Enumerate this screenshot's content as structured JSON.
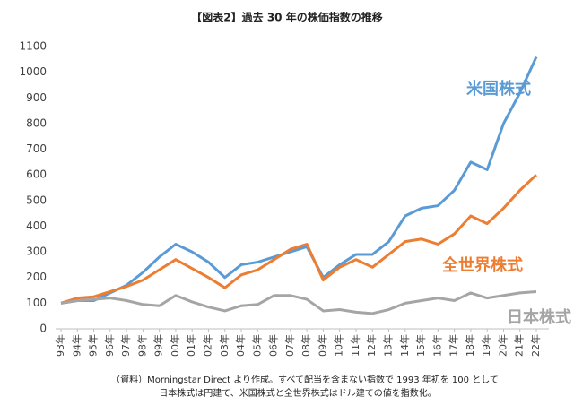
{
  "chart_data": {
    "type": "line",
    "title": "【図表2】過去 30 年の株価指数の推移",
    "notes": [
      "（資料）Morningstar Direct より作成。すべて配当を含まない指数で 1993 年初を 100 として",
      "日本株式は円建て、米国株式と全世界株式はドル建ての値を指数化。"
    ],
    "categories": [
      "'93年",
      "'94年",
      "'95年",
      "'96年",
      "'97年",
      "'98年",
      "'99年",
      "'00年",
      "'01年",
      "'02年",
      "'03年",
      "'04年",
      "'05年",
      "'06年",
      "'07年",
      "'08年",
      "'09年",
      "'10年",
      "'11年",
      "'12年",
      "'13年",
      "'14年",
      "'15年",
      "'16年",
      "'17年",
      "'18年",
      "'19年",
      "'20年",
      "'21年",
      "'22年"
    ],
    "series": [
      {
        "name": "米国株式",
        "color": "#5b9bd5",
        "values": [
          100,
          110,
          110,
          140,
          170,
          220,
          280,
          330,
          300,
          260,
          200,
          250,
          260,
          280,
          300,
          320,
          200,
          250,
          290,
          290,
          340,
          440,
          470,
          480,
          540,
          650,
          620,
          800,
          920,
          1060
        ]
      },
      {
        "name": "全世界株式",
        "color": "#ed7d31",
        "values": [
          100,
          120,
          125,
          145,
          165,
          190,
          230,
          270,
          235,
          200,
          160,
          210,
          230,
          270,
          310,
          330,
          190,
          240,
          270,
          240,
          290,
          340,
          350,
          330,
          370,
          440,
          410,
          470,
          540,
          600
        ]
      },
      {
        "name": "日本株式",
        "color": "#a5a5a5",
        "values": [
          100,
          110,
          115,
          120,
          110,
          95,
          90,
          130,
          105,
          85,
          70,
          90,
          95,
          130,
          130,
          115,
          70,
          75,
          65,
          60,
          75,
          100,
          110,
          120,
          110,
          140,
          120,
          130,
          140,
          145
        ]
      }
    ],
    "ylim": [
      0,
      1100
    ],
    "yticks": [
      0,
      100,
      200,
      300,
      400,
      500,
      600,
      700,
      800,
      900,
      1000,
      1100
    ],
    "grid": false
  }
}
